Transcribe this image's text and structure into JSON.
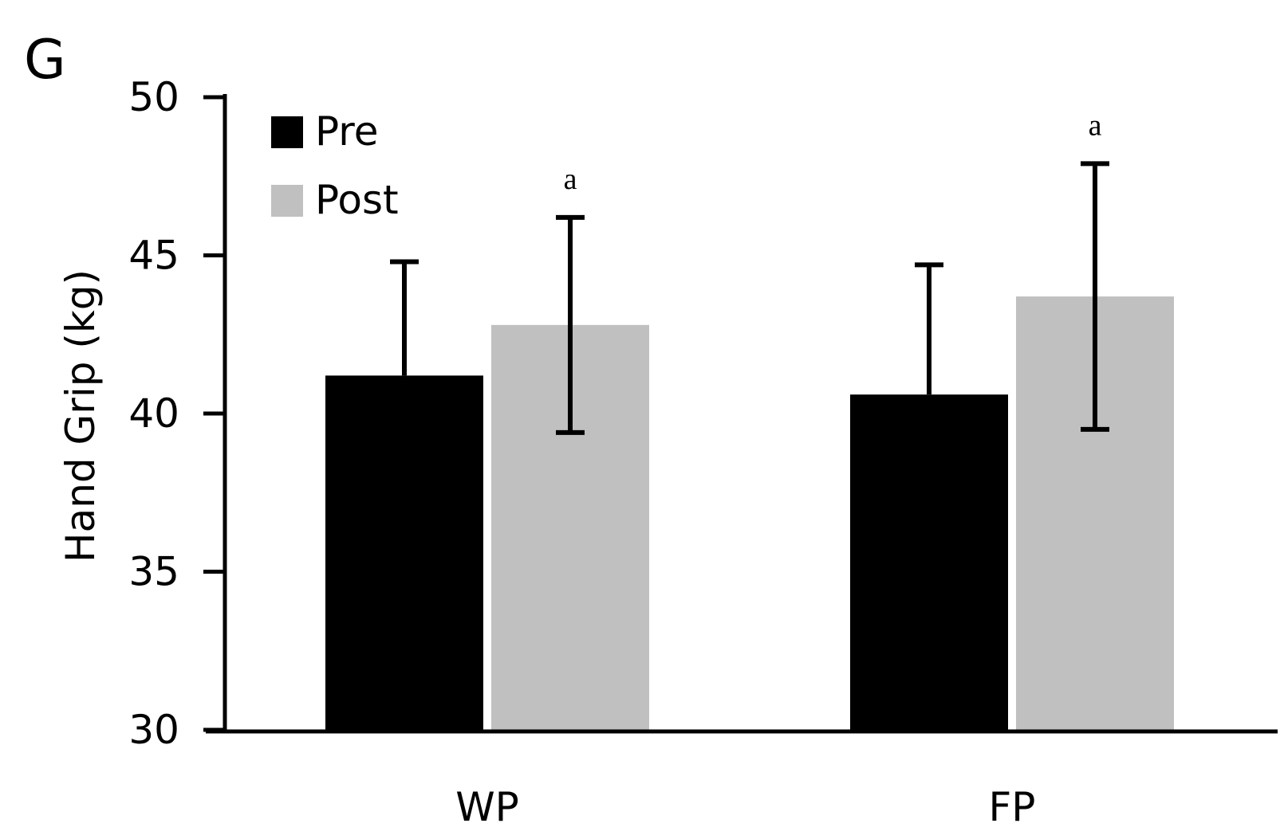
{
  "panel_label": "G",
  "chart_data": {
    "type": "bar",
    "ylabel": "Hand Grip (kg)",
    "xlabel": "",
    "ylim": [
      30,
      50
    ],
    "yticks": [
      "30",
      "35",
      "40",
      "45",
      "50"
    ],
    "categories": [
      "WP",
      "FP"
    ],
    "series": [
      {
        "name": "Pre",
        "color": "#000000",
        "values": [
          41.2,
          40.6
        ],
        "errors": [
          3.6,
          4.1
        ],
        "annotations": [
          "",
          ""
        ]
      },
      {
        "name": "Post",
        "color": "#c0c0c0",
        "values": [
          42.8,
          43.7
        ],
        "errors": [
          3.4,
          4.2
        ],
        "annotations": [
          "a",
          "a"
        ]
      }
    ],
    "legend_position": "top-left",
    "grid": false
  }
}
